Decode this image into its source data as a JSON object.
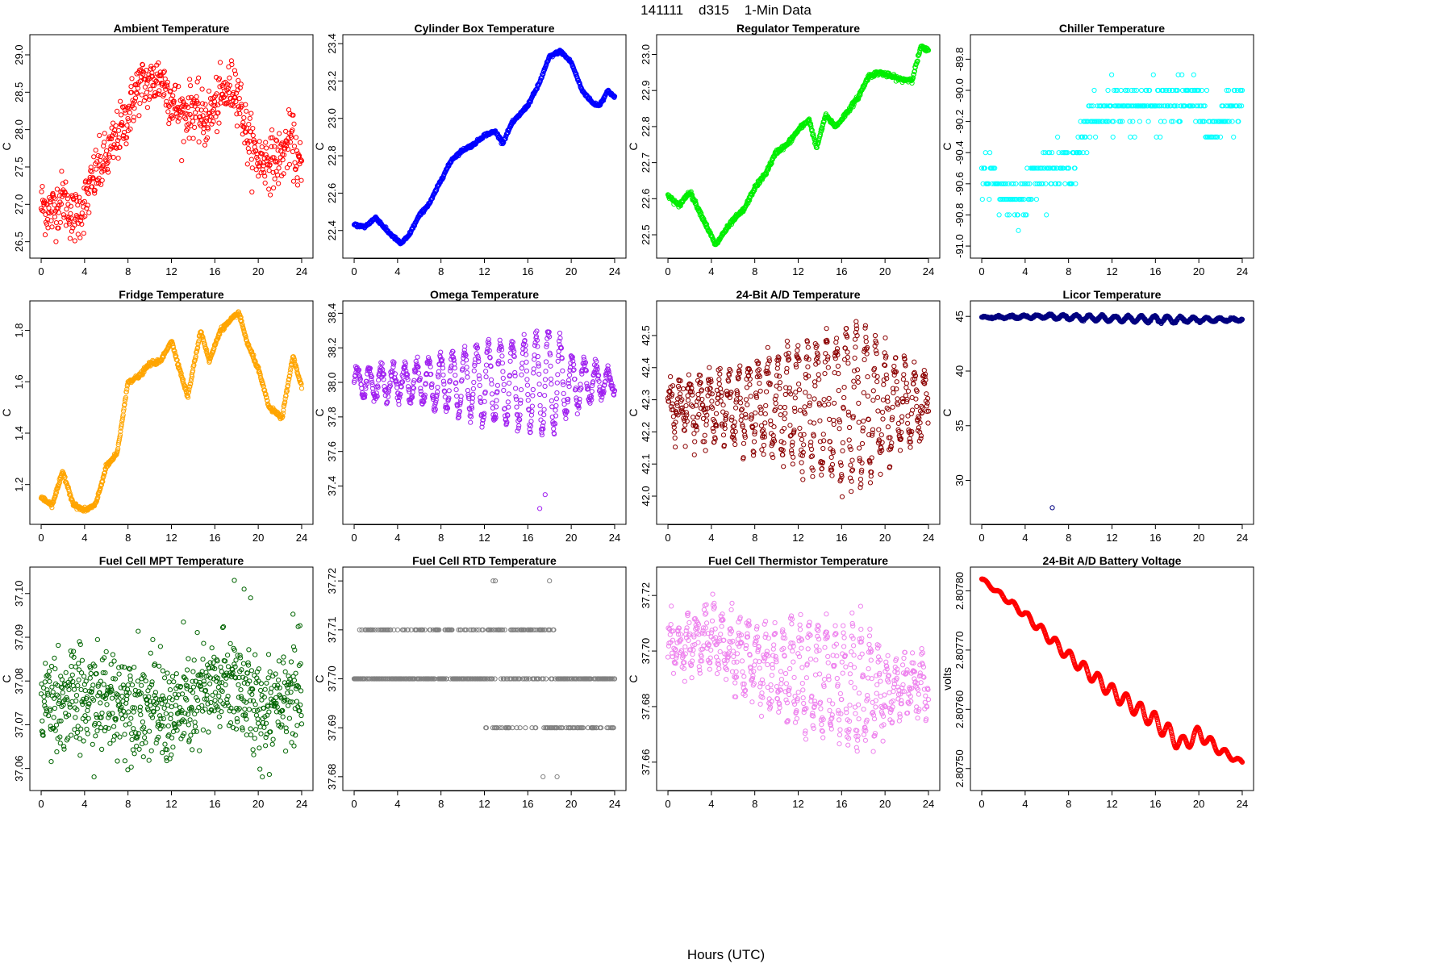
{
  "figure": {
    "suptitle": "141111    d315    1-Min Data",
    "xlabel": "Hours (UTC)"
  },
  "chart_data": [
    {
      "id": "p1",
      "type": "scatter",
      "title": "Ambient Temperature",
      "ylabel": "C",
      "color": "#ff0000",
      "xlim": [
        0,
        24
      ],
      "xticks": [
        0,
        4,
        8,
        12,
        16,
        20,
        24
      ],
      "ylim": [
        26.4,
        29.15
      ],
      "yticks": [
        26.5,
        27.0,
        27.5,
        28.0,
        28.5,
        29.0
      ],
      "ytick_labels": [
        "26.5",
        "27.0",
        "27.5",
        "28.0",
        "28.5",
        "29.0"
      ],
      "key_points": [
        [
          0,
          27.0
        ],
        [
          1,
          26.9
        ],
        [
          2,
          27.1
        ],
        [
          3,
          26.8
        ],
        [
          4,
          27.0
        ],
        [
          5,
          27.4
        ],
        [
          6,
          27.6
        ],
        [
          7,
          27.9
        ],
        [
          8,
          28.2
        ],
        [
          9,
          28.6
        ],
        [
          10,
          28.6
        ],
        [
          11,
          28.7
        ],
        [
          12,
          28.4
        ],
        [
          13,
          28.2
        ],
        [
          14,
          28.3
        ],
        [
          15,
          28.1
        ],
        [
          16,
          28.3
        ],
        [
          17,
          28.5
        ],
        [
          18,
          28.6
        ],
        [
          19,
          27.9
        ],
        [
          20,
          27.6
        ],
        [
          21,
          27.6
        ],
        [
          22,
          27.6
        ],
        [
          23,
          27.9
        ],
        [
          24,
          27.4
        ]
      ],
      "noise": 0.18,
      "n": 650,
      "outliers": []
    },
    {
      "id": "p2",
      "type": "scatter",
      "title": "Cylinder Box Temperature",
      "ylabel": "C",
      "color": "#0000ff",
      "xlim": [
        0,
        24
      ],
      "xticks": [
        0,
        4,
        8,
        12,
        16,
        20,
        24
      ],
      "ylim": [
        22.3,
        23.4
      ],
      "yticks": [
        22.4,
        22.6,
        22.8,
        23.0,
        23.2,
        23.4
      ],
      "ytick_labels": [
        "22.4",
        "22.6",
        "22.8",
        "23.0",
        "23.2",
        "23.4"
      ],
      "key_points": [
        [
          0,
          22.43
        ],
        [
          1,
          22.42
        ],
        [
          2,
          22.47
        ],
        [
          3,
          22.4
        ],
        [
          4.3,
          22.33
        ],
        [
          5,
          22.37
        ],
        [
          6,
          22.48
        ],
        [
          7,
          22.55
        ],
        [
          8,
          22.67
        ],
        [
          9,
          22.78
        ],
        [
          10,
          22.83
        ],
        [
          11,
          22.86
        ],
        [
          12,
          22.91
        ],
        [
          13,
          22.93
        ],
        [
          13.7,
          22.87
        ],
        [
          14.5,
          22.97
        ],
        [
          16,
          23.07
        ],
        [
          17,
          23.18
        ],
        [
          18,
          23.33
        ],
        [
          19,
          23.36
        ],
        [
          20,
          23.3
        ],
        [
          21,
          23.15
        ],
        [
          22,
          23.08
        ],
        [
          22.6,
          23.07
        ],
        [
          23.4,
          23.15
        ],
        [
          24,
          23.11
        ]
      ],
      "noise": 0.004,
      "n": 700,
      "outliers": []
    },
    {
      "id": "p3",
      "type": "scatter",
      "title": "Regulator Temperature",
      "ylabel": "C",
      "color": "#00ee00",
      "xlim": [
        0,
        24
      ],
      "xticks": [
        0,
        4,
        8,
        12,
        16,
        20,
        24
      ],
      "ylim": [
        22.46,
        23.03
      ],
      "yticks": [
        22.5,
        22.6,
        22.7,
        22.8,
        22.9,
        23.0
      ],
      "ytick_labels": [
        "22.5",
        "22.6",
        "22.7",
        "22.8",
        "22.9",
        "23.0"
      ],
      "key_points": [
        [
          0,
          22.61
        ],
        [
          1,
          22.58
        ],
        [
          2,
          22.62
        ],
        [
          3,
          22.56
        ],
        [
          4.4,
          22.47
        ],
        [
          5,
          22.5
        ],
        [
          6,
          22.54
        ],
        [
          7,
          22.57
        ],
        [
          8,
          22.63
        ],
        [
          9,
          22.67
        ],
        [
          10,
          22.73
        ],
        [
          11,
          22.75
        ],
        [
          12,
          22.79
        ],
        [
          13,
          22.82
        ],
        [
          13.7,
          22.74
        ],
        [
          14.5,
          22.83
        ],
        [
          15.5,
          22.8
        ],
        [
          16.5,
          22.84
        ],
        [
          17.5,
          22.88
        ],
        [
          18.5,
          22.94
        ],
        [
          19.5,
          22.95
        ],
        [
          20.5,
          22.94
        ],
        [
          21.5,
          22.93
        ],
        [
          22.5,
          22.93
        ],
        [
          23.3,
          23.02
        ],
        [
          24,
          23.01
        ]
      ],
      "noise": 0.003,
      "n": 700,
      "outliers": []
    },
    {
      "id": "p4",
      "type": "scatter",
      "title": "Chiller Temperature",
      "ylabel": "C",
      "color": "#00ffff",
      "xlim": [
        0,
        24
      ],
      "xticks": [
        0,
        4,
        8,
        12,
        16,
        20,
        24
      ],
      "ylim": [
        -91.02,
        -89.7
      ],
      "yticks": [
        -91.0,
        -90.8,
        -90.6,
        -90.4,
        -90.2,
        -90.0,
        -89.8
      ],
      "ytick_labels": [
        "-91.0",
        "-90.8",
        "-90.6",
        "-90.4",
        "-90.2",
        "-90.0",
        "-89.8"
      ],
      "key_points": [
        [
          0,
          -90.5
        ],
        [
          2,
          -90.65
        ],
        [
          4,
          -90.7
        ],
        [
          5,
          -90.5
        ],
        [
          7,
          -90.5
        ],
        [
          8,
          -90.5
        ],
        [
          9,
          -90.35
        ],
        [
          10,
          -90.2
        ],
        [
          12,
          -90.1
        ],
        [
          16,
          -90.1
        ],
        [
          20,
          -90.05
        ],
        [
          21,
          -90.3
        ],
        [
          22,
          -90.2
        ],
        [
          24,
          -90.05
        ]
      ],
      "noise": 0.07,
      "step": 0.1,
      "n": 420,
      "outliers": []
    },
    {
      "id": "p5",
      "type": "scatter",
      "title": "Fridge Temperature",
      "ylabel": "C",
      "color": "#ffa500",
      "xlim": [
        0,
        24
      ],
      "xticks": [
        0,
        4,
        8,
        12,
        16,
        20,
        24
      ],
      "ylim": [
        1.08,
        1.88
      ],
      "yticks": [
        1.2,
        1.4,
        1.6,
        1.8
      ],
      "ytick_labels": [
        "1.2",
        "1.4",
        "1.6",
        "1.8"
      ],
      "key_points": [
        [
          0,
          1.15
        ],
        [
          1,
          1.12
        ],
        [
          2,
          1.25
        ],
        [
          3,
          1.12
        ],
        [
          4,
          1.1
        ],
        [
          5,
          1.12
        ],
        [
          6,
          1.27
        ],
        [
          7,
          1.32
        ],
        [
          8,
          1.6
        ],
        [
          9,
          1.62
        ],
        [
          10,
          1.67
        ],
        [
          11,
          1.68
        ],
        [
          12,
          1.76
        ],
        [
          13.5,
          1.54
        ],
        [
          14.7,
          1.8
        ],
        [
          15.5,
          1.68
        ],
        [
          16.5,
          1.8
        ],
        [
          17.5,
          1.84
        ],
        [
          18.2,
          1.87
        ],
        [
          19,
          1.75
        ],
        [
          20,
          1.65
        ],
        [
          21,
          1.5
        ],
        [
          22.2,
          1.46
        ],
        [
          23.2,
          1.7
        ],
        [
          24,
          1.58
        ]
      ],
      "noise": 0.004,
      "n": 700,
      "outliers": []
    },
    {
      "id": "p6",
      "type": "scatter",
      "title": "Omega Temperature",
      "ylabel": "C",
      "color": "#a020f0",
      "xlim": [
        0,
        24
      ],
      "xticks": [
        0,
        4,
        8,
        12,
        16,
        20,
        24
      ],
      "ylim": [
        37.23,
        38.42
      ],
      "yticks": [
        37.4,
        37.6,
        37.8,
        38.0,
        38.2,
        38.4
      ],
      "ytick_labels": [
        "37.4",
        "37.6",
        "37.8",
        "38.0",
        "38.2",
        "38.4"
      ],
      "key_points": [
        [
          0,
          38.0
        ],
        [
          24,
          38.0
        ]
      ],
      "osc_amp": [
        [
          0,
          0.07
        ],
        [
          5,
          0.1
        ],
        [
          8,
          0.15
        ],
        [
          12,
          0.22
        ],
        [
          16,
          0.25
        ],
        [
          18,
          0.32
        ],
        [
          20,
          0.15
        ],
        [
          24,
          0.05
        ]
      ],
      "osc_period": 1.1,
      "noise": 0.02,
      "n": 700,
      "outliers": [
        [
          17.1,
          37.27
        ],
        [
          17.6,
          37.35
        ]
      ]
    },
    {
      "id": "p7",
      "type": "scatter",
      "title": "24-Bit A/D Temperature",
      "ylabel": "C",
      "color": "#8b0000",
      "xlim": [
        0,
        24
      ],
      "xticks": [
        0,
        4,
        8,
        12,
        16,
        20,
        24
      ],
      "ylim": [
        41.94,
        42.58
      ],
      "yticks": [
        42.0,
        42.1,
        42.2,
        42.3,
        42.4,
        42.5
      ],
      "ytick_labels": [
        "42.0",
        "42.1",
        "42.2",
        "42.3",
        "42.4",
        "42.5"
      ],
      "key_points": [
        [
          0,
          42.28
        ],
        [
          24,
          42.28
        ]
      ],
      "osc_amp": [
        [
          0,
          0.05
        ],
        [
          6,
          0.1
        ],
        [
          10,
          0.15
        ],
        [
          14,
          0.2
        ],
        [
          18,
          0.25
        ],
        [
          20,
          0.15
        ],
        [
          24,
          0.06
        ]
      ],
      "osc_period": 0.9,
      "noise": 0.03,
      "n": 750,
      "outliers": []
    },
    {
      "id": "p8",
      "type": "scatter",
      "title": "Licor Temperature",
      "ylabel": "C",
      "color": "#000080",
      "xlim": [
        0,
        24
      ],
      "xticks": [
        0,
        4,
        8,
        12,
        16,
        20,
        24
      ],
      "ylim": [
        26.8,
        45.6
      ],
      "yticks": [
        30,
        35,
        40,
        45
      ],
      "ytick_labels": [
        "30",
        "35",
        "40",
        "45"
      ],
      "key_points": [
        [
          0,
          44.9
        ],
        [
          6,
          45.0
        ],
        [
          12,
          44.8
        ],
        [
          18,
          44.7
        ],
        [
          24,
          44.7
        ]
      ],
      "osc_amp": [
        [
          0,
          0.05
        ],
        [
          8,
          0.2
        ],
        [
          16,
          0.3
        ],
        [
          24,
          0.1
        ]
      ],
      "osc_period": 1.2,
      "noise": 0.04,
      "n": 700,
      "outliers": [
        [
          6.5,
          27.5
        ]
      ]
    },
    {
      "id": "p9",
      "type": "scatter",
      "title": "Fuel Cell MPT Temperature",
      "ylabel": "C",
      "color": "#006400",
      "xlim": [
        0,
        24
      ],
      "xticks": [
        0,
        4,
        8,
        12,
        16,
        20,
        24
      ],
      "ylim": [
        37.057,
        37.104
      ],
      "yticks": [
        37.06,
        37.07,
        37.08,
        37.09,
        37.1
      ],
      "ytick_labels": [
        "37.06",
        "37.07",
        "37.08",
        "37.09",
        "37.10"
      ],
      "key_points": [
        [
          0,
          37.076
        ],
        [
          4,
          37.075
        ],
        [
          8,
          37.076
        ],
        [
          12,
          37.072
        ],
        [
          16,
          37.078
        ],
        [
          18,
          37.08
        ],
        [
          20,
          37.072
        ],
        [
          22,
          37.078
        ],
        [
          24,
          37.077
        ]
      ],
      "noise": 0.006,
      "n": 750,
      "outliers": [
        [
          17.8,
          37.103
        ],
        [
          18.7,
          37.101
        ],
        [
          19.3,
          37.099
        ]
      ]
    },
    {
      "id": "p10",
      "type": "scatter",
      "title": "Fuel Cell RTD Temperature",
      "ylabel": "C",
      "color": "#808080",
      "xlim": [
        0,
        24
      ],
      "xticks": [
        0,
        4,
        8,
        12,
        16,
        20,
        24
      ],
      "ylim": [
        37.679,
        37.721
      ],
      "yticks": [
        37.68,
        37.69,
        37.7,
        37.71,
        37.72
      ],
      "ytick_labels": [
        "37.68",
        "37.69",
        "37.70",
        "37.71",
        "37.72"
      ],
      "discrete_levels": [
        37.69,
        37.7,
        37.71
      ],
      "outliers": [
        [
          12.8,
          37.72
        ],
        [
          13.0,
          37.72
        ],
        [
          18.0,
          37.72
        ],
        [
          17.4,
          37.68
        ],
        [
          18.7,
          37.68
        ]
      ],
      "n": 480
    },
    {
      "id": "p11",
      "type": "scatter",
      "title": "Fuel Cell Thermistor Temperature",
      "ylabel": "C",
      "color": "#ee82ee",
      "xlim": [
        0,
        24
      ],
      "xticks": [
        0,
        4,
        8,
        12,
        16,
        20,
        24
      ],
      "ylim": [
        37.653,
        37.727
      ],
      "yticks": [
        37.66,
        37.68,
        37.7,
        37.72
      ],
      "ytick_labels": [
        "37.66",
        "37.68",
        "37.70",
        "37.72"
      ],
      "key_points": [
        [
          0,
          37.7
        ],
        [
          4,
          37.705
        ],
        [
          8,
          37.695
        ],
        [
          12,
          37.692
        ],
        [
          16,
          37.688
        ],
        [
          20,
          37.685
        ],
        [
          24,
          37.688
        ]
      ],
      "osc_amp": [
        [
          0,
          0.007
        ],
        [
          6,
          0.01
        ],
        [
          10,
          0.013
        ],
        [
          13,
          0.018
        ],
        [
          18,
          0.02
        ],
        [
          20,
          0.01
        ],
        [
          24,
          0.005
        ]
      ],
      "osc_period": 0.8,
      "noise": 0.004,
      "n": 700,
      "outliers": []
    },
    {
      "id": "p12",
      "type": "scatter",
      "title": "24-Bit A/D Battery Voltage",
      "ylabel": "volts",
      "color": "#ff0000",
      "xlim": [
        0,
        24
      ],
      "xticks": [
        0,
        4,
        8,
        12,
        16,
        20,
        24
      ],
      "ylim": [
        2.807478,
        2.807825
      ],
      "yticks": [
        2.8075,
        2.8076,
        2.8077,
        2.8078
      ],
      "ytick_labels": [
        "2.80750",
        "2.80760",
        "2.80770",
        "2.80780"
      ],
      "key_points": [
        [
          0,
          2.80782
        ],
        [
          4,
          2.80776
        ],
        [
          8,
          2.80769
        ],
        [
          12,
          2.80763
        ],
        [
          16,
          2.80758
        ],
        [
          18.5,
          2.80754
        ],
        [
          20,
          2.80756
        ],
        [
          22,
          2.80753
        ],
        [
          24,
          2.80751
        ]
      ],
      "osc_amp": [
        [
          0,
          2e-06
        ],
        [
          6,
          8e-06
        ],
        [
          12,
          1.2e-05
        ],
        [
          18,
          1.5e-05
        ],
        [
          24,
          3e-06
        ]
      ],
      "osc_period": 1.3,
      "noise": 3e-07,
      "n": 700,
      "outliers": []
    }
  ]
}
